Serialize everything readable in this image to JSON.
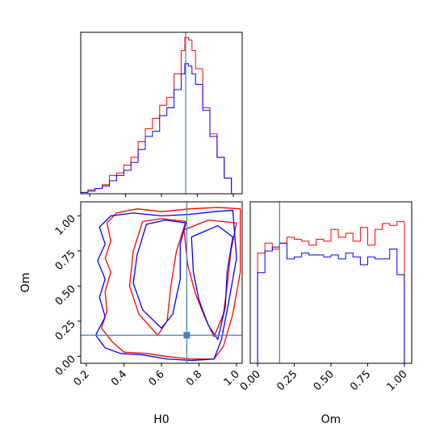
{
  "chart_data": {
    "type": "corner",
    "parameters": [
      "H0",
      "Om"
    ],
    "truth": {
      "H0": 0.735,
      "Om": 0.15
    },
    "colors": {
      "series_a": "#ff0000",
      "series_b": "#0000ff",
      "truth": "#4682b4"
    },
    "panels": [
      {
        "id": "H0-hist",
        "type": "histogram",
        "xlim": [
          0.15,
          1.05
        ],
        "bins": [
          0.15,
          0.19,
          0.23,
          0.27,
          0.31,
          0.35,
          0.39,
          0.43,
          0.47,
          0.51,
          0.55,
          0.59,
          0.63,
          0.67,
          0.71,
          0.73,
          0.75,
          0.77,
          0.79,
          0.83,
          0.87,
          0.91,
          0.95,
          0.99,
          1.03
        ],
        "series": [
          {
            "color": "red",
            "counts": [
              0.5,
              1.5,
              2,
              3.5,
              7,
              8,
              11,
              14,
              20,
              25,
              29,
              34,
              37,
              46,
              55,
              60,
              59,
              55,
              48,
              33,
              23,
              14,
              6,
              0
            ]
          },
          {
            "color": "blue",
            "counts": [
              0.5,
              1,
              2,
              3,
              5,
              7,
              9,
              12,
              17,
              22,
              24,
              30,
              33,
              40,
              46,
              50,
              49,
              46,
              42,
              32,
              22,
              14,
              6,
              0
            ]
          }
        ],
        "xticks": [
          0.2,
          0.4,
          0.6,
          0.8,
          1.0
        ]
      },
      {
        "id": "Om-hist",
        "type": "histogram",
        "xlim": [
          -0.05,
          1.05
        ],
        "bins": [
          -0.05,
          0.0,
          0.05,
          0.1,
          0.15,
          0.2,
          0.25,
          0.3,
          0.35,
          0.4,
          0.45,
          0.5,
          0.55,
          0.6,
          0.65,
          0.7,
          0.75,
          0.8,
          0.85,
          0.9,
          0.95,
          1.0,
          1.05
        ],
        "series": [
          {
            "color": "red",
            "counts": [
              0,
              56,
              61,
              58,
              61,
              64,
              63,
              62,
              60,
              63,
              62,
              68,
              64,
              66,
              62,
              69,
              60,
              68,
              71,
              70,
              72,
              0
            ]
          },
          {
            "color": "blue",
            "counts": [
              0,
              46,
              57,
              59,
              61,
              53,
              54,
              56,
              55,
              55,
              54,
              55,
              53,
              56,
              54,
              50,
              54,
              53,
              53,
              58,
              45,
              0
            ]
          }
        ],
        "xticks": [
          0.0,
          0.25,
          0.5,
          0.75,
          1.0
        ],
        "xticklabels": [
          "0.00",
          "0.25",
          "0.50",
          "0.75",
          "1.00"
        ],
        "xlabel": "Om"
      },
      {
        "id": "H0-Om-contour",
        "type": "contour",
        "xlim": [
          0.17,
          1.03
        ],
        "ylim": [
          -0.05,
          1.1
        ],
        "xticks": [
          0.2,
          0.4,
          0.6,
          0.8,
          1.0
        ],
        "xticklabels": [
          "0.2",
          "0.4",
          "0.6",
          "0.8",
          "1.0"
        ],
        "yticks": [
          0.0,
          0.25,
          0.5,
          0.75,
          1.0
        ],
        "yticklabels": [
          "0.00",
          "0.25",
          "0.50",
          "0.75",
          "1.00"
        ],
        "xlabel": "H0",
        "ylabel": "Om",
        "contours": [
          {
            "color": "red",
            "points": [
              [
                0.28,
                0.2
              ],
              [
                0.31,
                0.32
              ],
              [
                0.3,
                0.46
              ],
              [
                0.33,
                0.6
              ],
              [
                0.3,
                0.7
              ],
              [
                0.33,
                0.82
              ],
              [
                0.31,
                0.95
              ],
              [
                0.36,
                1.02
              ],
              [
                0.47,
                1.05
              ],
              [
                0.6,
                1.03
              ],
              [
                0.75,
                1.05
              ],
              [
                0.9,
                1.06
              ],
              [
                1.02,
                1.05
              ],
              [
                1.02,
                0.6
              ],
              [
                0.98,
                0.3
              ],
              [
                0.93,
                0.07
              ],
              [
                0.88,
                -0.02
              ],
              [
                0.75,
                -0.02
              ],
              [
                0.62,
                0.0
              ],
              [
                0.52,
                0.02
              ],
              [
                0.4,
                0.03
              ],
              [
                0.34,
                0.1
              ],
              [
                0.28,
                0.2
              ]
            ]
          },
          {
            "color": "red",
            "points": [
              [
                0.45,
                0.75
              ],
              [
                0.43,
                0.5
              ],
              [
                0.48,
                0.3
              ],
              [
                0.58,
                0.15
              ],
              [
                0.63,
                0.25
              ],
              [
                0.65,
                0.5
              ],
              [
                0.68,
                0.75
              ],
              [
                0.73,
                0.96
              ],
              [
                0.6,
                0.98
              ],
              [
                0.5,
                0.96
              ],
              [
                0.45,
                0.75
              ]
            ]
          },
          {
            "color": "red",
            "points": [
              [
                0.72,
                0.9
              ],
              [
                0.74,
                0.65
              ],
              [
                0.78,
                0.45
              ],
              [
                0.83,
                0.28
              ],
              [
                0.88,
                0.14
              ],
              [
                0.93,
                0.3
              ],
              [
                0.95,
                0.5
              ],
              [
                0.97,
                0.75
              ],
              [
                1.0,
                0.95
              ],
              [
                0.85,
                0.97
              ],
              [
                0.72,
                0.9
              ]
            ]
          },
          {
            "color": "blue",
            "points": [
              [
                0.25,
                0.15
              ],
              [
                0.3,
                0.28
              ],
              [
                0.27,
                0.42
              ],
              [
                0.3,
                0.55
              ],
              [
                0.26,
                0.68
              ],
              [
                0.3,
                0.8
              ],
              [
                0.27,
                0.92
              ],
              [
                0.33,
                1.0
              ],
              [
                0.45,
                1.02
              ],
              [
                0.6,
                1.0
              ],
              [
                0.75,
                1.01
              ],
              [
                0.88,
                1.03
              ],
              [
                0.98,
                1.04
              ],
              [
                1.0,
                0.7
              ],
              [
                0.96,
                0.4
              ],
              [
                0.92,
                0.12
              ],
              [
                0.88,
                -0.02
              ],
              [
                0.76,
                -0.03
              ],
              [
                0.63,
                -0.02
              ],
              [
                0.5,
                0.01
              ],
              [
                0.38,
                0.02
              ],
              [
                0.3,
                0.06
              ],
              [
                0.25,
                0.15
              ]
            ]
          },
          {
            "color": "blue",
            "points": [
              [
                0.47,
                0.72
              ],
              [
                0.45,
                0.52
              ],
              [
                0.5,
                0.33
              ],
              [
                0.6,
                0.2
              ],
              [
                0.66,
                0.3
              ],
              [
                0.7,
                0.55
              ],
              [
                0.7,
                0.8
              ],
              [
                0.73,
                0.95
              ],
              [
                0.62,
                0.97
              ],
              [
                0.52,
                0.94
              ],
              [
                0.47,
                0.72
              ]
            ]
          },
          {
            "color": "blue",
            "points": [
              [
                0.76,
                0.85
              ],
              [
                0.77,
                0.6
              ],
              [
                0.8,
                0.4
              ],
              [
                0.85,
                0.22
              ],
              [
                0.9,
                0.12
              ],
              [
                0.94,
                0.35
              ],
              [
                0.95,
                0.6
              ],
              [
                0.98,
                0.85
              ],
              [
                0.9,
                0.93
              ],
              [
                0.76,
                0.85
              ]
            ]
          }
        ]
      }
    ]
  }
}
